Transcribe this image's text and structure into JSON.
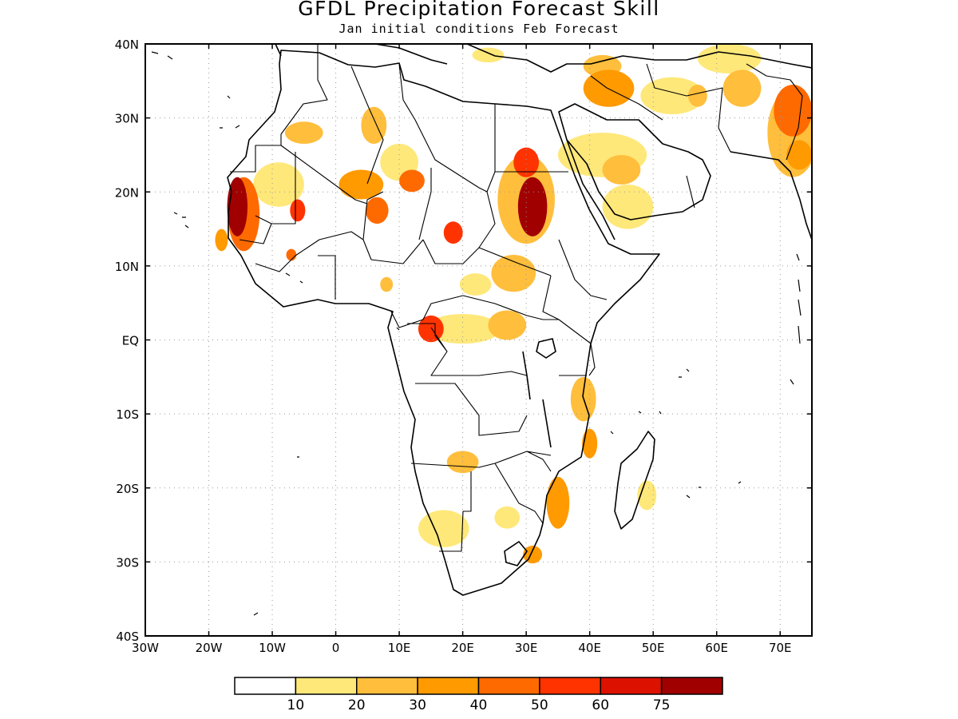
{
  "title": "GFDL Precipitation Forecast Skill",
  "subtitle": "Jan initial conditions  Feb Forecast",
  "map": {
    "lon_range": [
      -30,
      75
    ],
    "lat_range": [
      -40,
      40
    ],
    "grid": "dotted",
    "lon_ticks": [
      {
        "value": -30,
        "label": "30W"
      },
      {
        "value": -20,
        "label": "20W"
      },
      {
        "value": -10,
        "label": "10W"
      },
      {
        "value": 0,
        "label": "0"
      },
      {
        "value": 10,
        "label": "10E"
      },
      {
        "value": 20,
        "label": "20E"
      },
      {
        "value": 30,
        "label": "30E"
      },
      {
        "value": 40,
        "label": "40E"
      },
      {
        "value": 50,
        "label": "50E"
      },
      {
        "value": 60,
        "label": "60E"
      },
      {
        "value": 70,
        "label": "70E"
      }
    ],
    "lat_ticks": [
      {
        "value": 40,
        "label": "40N"
      },
      {
        "value": 30,
        "label": "30N"
      },
      {
        "value": 20,
        "label": "20N"
      },
      {
        "value": 10,
        "label": "10N"
      },
      {
        "value": 0,
        "label": "EQ"
      },
      {
        "value": -10,
        "label": "10S"
      },
      {
        "value": -20,
        "label": "20S"
      },
      {
        "value": -30,
        "label": "30S"
      },
      {
        "value": -40,
        "label": "40S"
      }
    ],
    "skill_regions": [
      {
        "lon": -15.5,
        "lat": 18,
        "rx": 1.6,
        "ry": 4,
        "level": 7
      },
      {
        "lon": -14.5,
        "lat": 17,
        "rx": 2.5,
        "ry": 5,
        "level": 4
      },
      {
        "lon": -9,
        "lat": 21,
        "rx": 4,
        "ry": 3,
        "level": 1
      },
      {
        "lon": -6,
        "lat": 17.5,
        "rx": 1.2,
        "ry": 1.5,
        "level": 5
      },
      {
        "lon": -5,
        "lat": 28,
        "rx": 3,
        "ry": 1.5,
        "level": 2
      },
      {
        "lon": 4,
        "lat": 21,
        "rx": 3.5,
        "ry": 2,
        "level": 3
      },
      {
        "lon": 6,
        "lat": 29,
        "rx": 2,
        "ry": 2.5,
        "level": 2
      },
      {
        "lon": 10,
        "lat": 24,
        "rx": 3,
        "ry": 2.5,
        "level": 1
      },
      {
        "lon": 12,
        "lat": 21.5,
        "rx": 2,
        "ry": 1.5,
        "level": 4
      },
      {
        "lon": 6.5,
        "lat": 17.5,
        "rx": 1.8,
        "ry": 1.8,
        "level": 4
      },
      {
        "lon": 18.5,
        "lat": 14.5,
        "rx": 1.5,
        "ry": 1.5,
        "level": 5
      },
      {
        "lon": 30,
        "lat": 24,
        "rx": 2,
        "ry": 2,
        "level": 5
      },
      {
        "lon": 31,
        "lat": 18,
        "rx": 2.3,
        "ry": 4,
        "level": 7
      },
      {
        "lon": 30,
        "lat": 19,
        "rx": 4.5,
        "ry": 6,
        "level": 2
      },
      {
        "lon": 28,
        "lat": 9,
        "rx": 3.5,
        "ry": 2.5,
        "level": 2
      },
      {
        "lon": 22,
        "lat": 7.5,
        "rx": 2.5,
        "ry": 1.5,
        "level": 1
      },
      {
        "lon": 15,
        "lat": 1.5,
        "rx": 2,
        "ry": 1.8,
        "level": 5
      },
      {
        "lon": 20,
        "lat": 1.5,
        "rx": 6,
        "ry": 2,
        "level": 1
      },
      {
        "lon": 27,
        "lat": 2,
        "rx": 3,
        "ry": 2,
        "level": 2
      },
      {
        "lon": 39,
        "lat": -8,
        "rx": 2,
        "ry": 3,
        "level": 2
      },
      {
        "lon": 40,
        "lat": -14,
        "rx": 1.2,
        "ry": 2,
        "level": 3
      },
      {
        "lon": 20,
        "lat": -16.5,
        "rx": 2.5,
        "ry": 1.5,
        "level": 2
      },
      {
        "lon": 35,
        "lat": -22,
        "rx": 1.8,
        "ry": 3.5,
        "level": 3
      },
      {
        "lon": 17,
        "lat": -25.5,
        "rx": 4,
        "ry": 2.5,
        "level": 1
      },
      {
        "lon": 27,
        "lat": -24,
        "rx": 2,
        "ry": 1.5,
        "level": 1
      },
      {
        "lon": 31,
        "lat": -29,
        "rx": 1.5,
        "ry": 1.2,
        "level": 3
      },
      {
        "lon": 49,
        "lat": -21,
        "rx": 1.5,
        "ry": 2,
        "level": 1
      },
      {
        "lon": 42,
        "lat": 25,
        "rx": 7,
        "ry": 3,
        "level": 1
      },
      {
        "lon": 45,
        "lat": 23,
        "rx": 3,
        "ry": 2,
        "level": 2
      },
      {
        "lon": 46,
        "lat": 18,
        "rx": 4,
        "ry": 3,
        "level": 1
      },
      {
        "lon": 43,
        "lat": 34,
        "rx": 4,
        "ry": 2.5,
        "level": 3
      },
      {
        "lon": 42,
        "lat": 37,
        "rx": 3,
        "ry": 1.5,
        "level": 2
      },
      {
        "lon": 53,
        "lat": 33,
        "rx": 5,
        "ry": 2.5,
        "level": 1
      },
      {
        "lon": 57,
        "lat": 33,
        "rx": 1.5,
        "ry": 1.5,
        "level": 2
      },
      {
        "lon": 62,
        "lat": 38,
        "rx": 5,
        "ry": 2,
        "level": 1
      },
      {
        "lon": 64,
        "lat": 34,
        "rx": 3,
        "ry": 2.5,
        "level": 2
      },
      {
        "lon": 72,
        "lat": 31,
        "rx": 3,
        "ry": 3.5,
        "level": 4
      },
      {
        "lon": 73,
        "lat": 25,
        "rx": 2,
        "ry": 2,
        "level": 3
      },
      {
        "lon": 72,
        "lat": 28,
        "rx": 4,
        "ry": 6,
        "level": 2
      },
      {
        "lon": -18,
        "lat": 13.5,
        "rx": 1,
        "ry": 1.5,
        "level": 3
      },
      {
        "lon": -7,
        "lat": 11.5,
        "rx": 0.8,
        "ry": 0.8,
        "level": 4
      },
      {
        "lon": 8,
        "lat": 7.5,
        "rx": 1,
        "ry": 1,
        "level": 2
      },
      {
        "lon": 24,
        "lat": 38.5,
        "rx": 2.5,
        "ry": 1,
        "level": 1
      }
    ]
  },
  "colorbar": {
    "colors": [
      "#ffffff",
      "#ffe87a",
      "#ffbe3c",
      "#ff9a00",
      "#ff6a00",
      "#ff3300",
      "#dd1100",
      "#a00000"
    ],
    "labels": [
      "10",
      "20",
      "30",
      "40",
      "50",
      "60",
      "75"
    ]
  }
}
